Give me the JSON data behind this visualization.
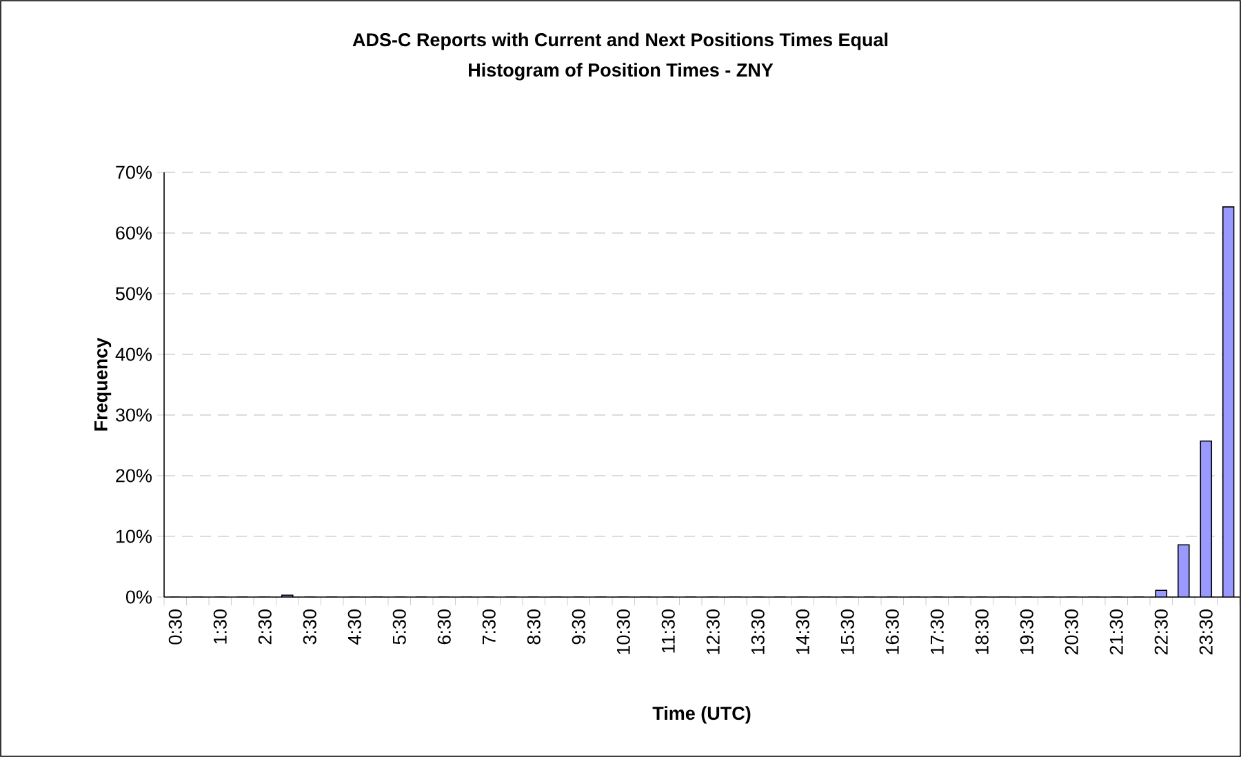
{
  "chart_data": {
    "type": "bar",
    "title": "ADS-C Reports with Current and Next Positions Times Equal",
    "subtitle": "Histogram of Position Times - ZNY",
    "xlabel": "Time (UTC)",
    "ylabel": "Frequency",
    "categories": [
      "0:30",
      null,
      "1:30",
      null,
      "2:30",
      null,
      "3:30",
      null,
      "4:30",
      null,
      "5:30",
      null,
      "6:30",
      null,
      "7:30",
      null,
      "8:30",
      null,
      "9:30",
      null,
      "10:30",
      null,
      "11:30",
      null,
      "12:30",
      null,
      "13:30",
      null,
      "14:30",
      null,
      "15:30",
      null,
      "16:30",
      null,
      "17:30",
      null,
      "18:30",
      null,
      "19:30",
      null,
      "20:30",
      null,
      "21:30",
      null,
      "22:30",
      null,
      "23:30",
      null
    ],
    "values": [
      0,
      0,
      0,
      0,
      0,
      0.3,
      0,
      0,
      0,
      0,
      0,
      0,
      0,
      0,
      0,
      0,
      0,
      0,
      0,
      0,
      0,
      0,
      0,
      0,
      0,
      0,
      0,
      0,
      0,
      0,
      0,
      0,
      0,
      0,
      0,
      0,
      0,
      0,
      0,
      0,
      0,
      0,
      0,
      0,
      1.1,
      8.6,
      25.7,
      64.3
    ],
    "color": "#9999ff",
    "ylim": [
      0,
      70
    ],
    "yticks": [
      {
        "value": 0,
        "label": "0%"
      },
      {
        "value": 10,
        "label": "10%"
      },
      {
        "value": 20,
        "label": "20%"
      },
      {
        "value": 30,
        "label": "30%"
      },
      {
        "value": 40,
        "label": "40%"
      },
      {
        "value": 50,
        "label": "50%"
      },
      {
        "value": 60,
        "label": "60%"
      },
      {
        "value": 70,
        "label": "70%"
      }
    ],
    "grid": "y"
  }
}
